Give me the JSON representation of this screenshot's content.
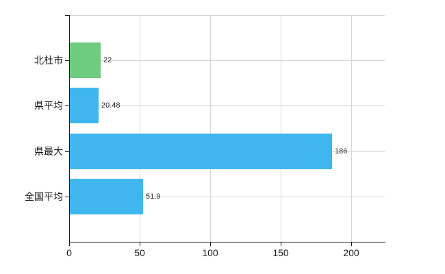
{
  "chart_data": {
    "type": "bar",
    "orientation": "horizontal",
    "title": "",
    "categories": [
      "北杜市",
      "県平均",
      "県最大",
      "全国平均"
    ],
    "values": [
      22,
      20.48,
      186,
      51.9
    ],
    "value_labels": [
      "22",
      "20.48",
      "186",
      "51.9"
    ],
    "bar_colors": [
      "#6ecb80",
      "#3fb6ee",
      "#3fb6ee",
      "#3fb6ee"
    ],
    "x_ticks": [
      0,
      50,
      100,
      150,
      200
    ],
    "x_tick_labels": [
      "0",
      "50",
      "100",
      "150",
      "200"
    ],
    "xlim": [
      0,
      224
    ],
    "grid": "on",
    "legend": "none",
    "colors": {
      "axis": "#1a1a1a",
      "gridline": "#d6d6d6",
      "label": "#2b2b2b",
      "background": "#ffffff",
      "bar_green": "#6ecb80",
      "bar_blue": "#3fb6ee"
    }
  }
}
